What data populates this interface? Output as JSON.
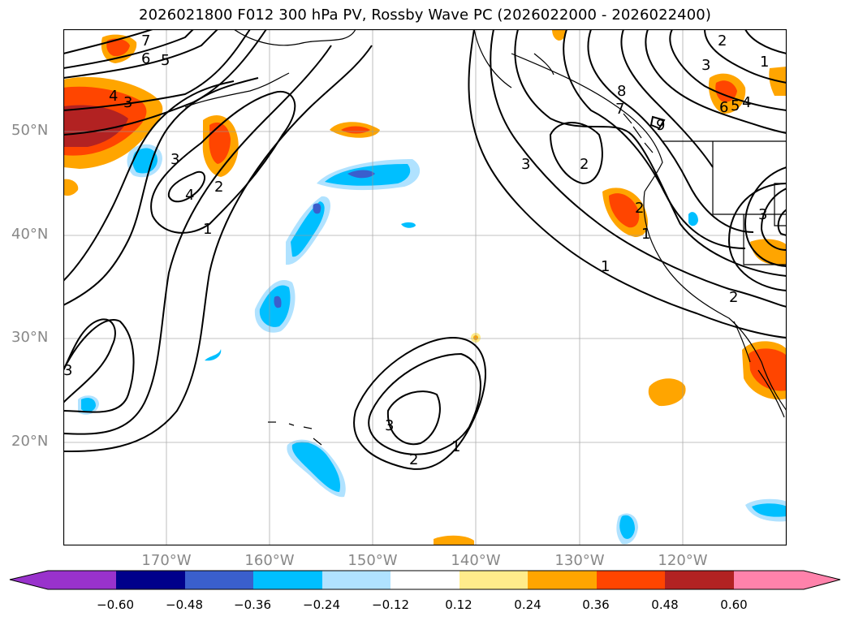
{
  "title": "2026021800 F012 300 hPa PV, Rossby Wave PC (2026022000 - 2026022400)",
  "map": {
    "lat_labels": [
      "50°N",
      "40°N",
      "30°N",
      "20°N"
    ],
    "lon_labels": [
      "170°W",
      "160°W",
      "150°W",
      "140°W",
      "130°W",
      "120°W"
    ],
    "contour_labels": [
      "7",
      "6",
      "5",
      "4",
      "3",
      "3",
      "4",
      "2",
      "1",
      "3",
      "2",
      "1",
      "3",
      "2",
      "8",
      "7",
      "9",
      "3",
      "2",
      "6",
      "5",
      "4",
      "3",
      "1",
      "1",
      "2",
      "3",
      "2",
      "1"
    ]
  },
  "colorbar": {
    "ticks": [
      "−0.60",
      "−0.48",
      "−0.36",
      "−0.24",
      "−0.12",
      "0.12",
      "0.24",
      "0.36",
      "0.48",
      "0.60"
    ],
    "colors": [
      "#9932cc",
      "#00008b",
      "#3a5fcd",
      "#00bfff",
      "#b0e2ff",
      "#ffffff",
      "#ffec8b",
      "#ffa500",
      "#ff4500",
      "#b22222",
      "#ff82ab"
    ]
  }
}
